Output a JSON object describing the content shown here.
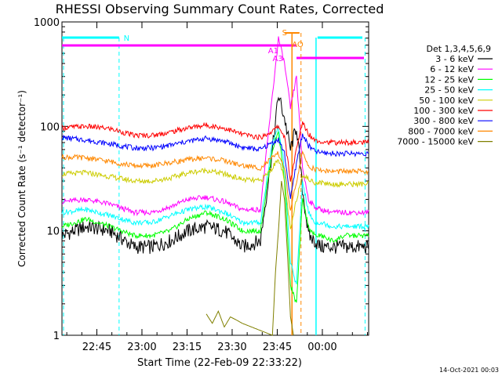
{
  "chart_data": {
    "type": "line",
    "title": "RHESSI Observing Summary Count Rates, Corrected",
    "xlabel": "Start Time (22-Feb-09 22:33:22)",
    "ylabel": "Corrected Count Rate (s⁻¹ detector⁻¹)",
    "yscale": "log",
    "ylim": [
      1,
      1000
    ],
    "xlim_minutes": [
      0,
      102
    ],
    "x_ticks": [
      {
        "label": "22:45",
        "minutes": 11.6
      },
      {
        "label": "23:00",
        "minutes": 26.6
      },
      {
        "label": "23:15",
        "minutes": 41.6
      },
      {
        "label": "23:30",
        "minutes": 56.6
      },
      {
        "label": "23:45",
        "minutes": 71.6
      },
      {
        "label": "00:00",
        "minutes": 86.6
      }
    ],
    "y_ticks": [
      {
        "label": "1",
        "value": 1
      },
      {
        "label": "10",
        "value": 10
      },
      {
        "label": "100",
        "value": 100
      },
      {
        "label": "1000",
        "value": 1000
      }
    ],
    "legend_title": "Det 1,3,4,5,6,9",
    "legend_position": "right",
    "series": [
      {
        "name": "3 - 6 keV",
        "color": "#000000",
        "x": [
          0,
          8,
          16,
          24,
          30,
          36,
          42,
          48,
          54,
          60,
          66,
          70,
          72,
          74,
          76,
          78,
          80,
          82,
          84,
          86,
          90,
          94,
          98,
          102
        ],
        "values": [
          9,
          11,
          10,
          7,
          7,
          8,
          10,
          11,
          10,
          7,
          8,
          60,
          200,
          120,
          60,
          100,
          25,
          9,
          8,
          7,
          7,
          7,
          7,
          7
        ]
      },
      {
        "name": "6 - 12 keV",
        "color": "#ff00ff",
        "x": [
          0,
          8,
          16,
          24,
          30,
          36,
          42,
          48,
          54,
          60,
          66,
          70,
          72,
          74,
          76,
          78,
          80,
          82,
          84,
          86,
          90,
          94,
          98,
          102
        ],
        "values": [
          19,
          20,
          18,
          15,
          15,
          17,
          20,
          21,
          19,
          16,
          16,
          200,
          700,
          400,
          150,
          300,
          40,
          20,
          17,
          16,
          15,
          15,
          15,
          15
        ]
      },
      {
        "name": "12 - 25 keV",
        "color": "#00ff00",
        "x": [
          0,
          8,
          16,
          24,
          30,
          36,
          42,
          48,
          54,
          60,
          66,
          70,
          72,
          74,
          76,
          78,
          80,
          82,
          84,
          86,
          90,
          94,
          98,
          102
        ],
        "values": [
          11,
          13,
          11,
          9,
          9,
          10,
          13,
          15,
          13,
          10,
          10,
          60,
          90,
          30,
          3,
          2,
          20,
          11,
          9,
          9,
          8,
          9,
          9,
          9
        ]
      },
      {
        "name": "25 - 50 keV",
        "color": "#00ffff",
        "x": [
          0,
          8,
          16,
          24,
          30,
          36,
          42,
          48,
          54,
          60,
          66,
          70,
          72,
          74,
          76,
          78,
          80,
          82,
          84,
          86,
          90,
          94,
          98,
          102
        ],
        "values": [
          15,
          16,
          14,
          12,
          12,
          14,
          16,
          17,
          15,
          12,
          12,
          70,
          100,
          40,
          5,
          3,
          30,
          15,
          12,
          12,
          11,
          11,
          11,
          11
        ]
      },
      {
        "name": "50 - 100 keV",
        "color": "#cccc00",
        "x": [
          0,
          8,
          16,
          24,
          30,
          36,
          42,
          48,
          54,
          60,
          66,
          70,
          72,
          74,
          76,
          78,
          80,
          82,
          84,
          86,
          90,
          94,
          98,
          102
        ],
        "values": [
          35,
          36,
          33,
          30,
          30,
          32,
          36,
          38,
          35,
          31,
          30,
          40,
          50,
          30,
          10,
          20,
          35,
          31,
          29,
          29,
          28,
          28,
          28,
          28
        ]
      },
      {
        "name": "100 - 300 keV",
        "color": "#ff0000",
        "x": [
          0,
          8,
          16,
          24,
          30,
          36,
          42,
          48,
          54,
          60,
          66,
          70,
          72,
          74,
          76,
          78,
          80,
          82,
          84,
          86,
          90,
          94,
          98,
          102
        ],
        "values": [
          97,
          100,
          95,
          82,
          82,
          88,
          97,
          103,
          96,
          84,
          78,
          90,
          100,
          80,
          30,
          60,
          110,
          85,
          75,
          72,
          70,
          70,
          70,
          70
        ]
      },
      {
        "name": "300 - 800 keV",
        "color": "#0000ff",
        "x": [
          0,
          8,
          16,
          24,
          30,
          36,
          42,
          48,
          54,
          60,
          66,
          70,
          72,
          74,
          76,
          78,
          80,
          82,
          84,
          86,
          90,
          94,
          98,
          102
        ],
        "values": [
          78,
          74,
          68,
          62,
          62,
          66,
          72,
          77,
          72,
          63,
          60,
          70,
          75,
          55,
          20,
          45,
          85,
          65,
          58,
          56,
          55,
          55,
          55,
          55
        ]
      },
      {
        "name": "800 - 7000 keV",
        "color": "#ff8800",
        "x": [
          0,
          8,
          16,
          24,
          30,
          36,
          42,
          48,
          54,
          60,
          66,
          70,
          72,
          74,
          76,
          78,
          80,
          82,
          84,
          86,
          90,
          94,
          98,
          102
        ],
        "values": [
          51,
          50,
          46,
          42,
          42,
          45,
          48,
          50,
          47,
          42,
          40,
          50,
          55,
          40,
          15,
          30,
          55,
          42,
          39,
          38,
          37,
          37,
          37,
          37
        ]
      },
      {
        "name": "7000 - 15000 keV",
        "color": "#808000",
        "x": [
          48,
          50,
          52,
          54,
          56,
          58,
          60,
          70,
          71,
          72,
          73,
          74,
          75,
          76,
          77
        ],
        "values": [
          1.6,
          1.3,
          1.7,
          1.2,
          1.5,
          1.4,
          1.3,
          1.0,
          4,
          10,
          30,
          20,
          6,
          1.5,
          1.0
        ]
      }
    ],
    "annotations": [
      {
        "label": "N",
        "color": "#00ffff"
      },
      {
        "label": "S",
        "color": "#ff8800"
      },
      {
        "label": "AO",
        "color": "#ff8800"
      },
      {
        "label": "A1",
        "color": "#ff00ff"
      },
      {
        "label": "A3",
        "color": "#ff00ff"
      }
    ],
    "grid": false
  },
  "footer": {
    "timestamp": "14-Oct-2021 00:03"
  }
}
